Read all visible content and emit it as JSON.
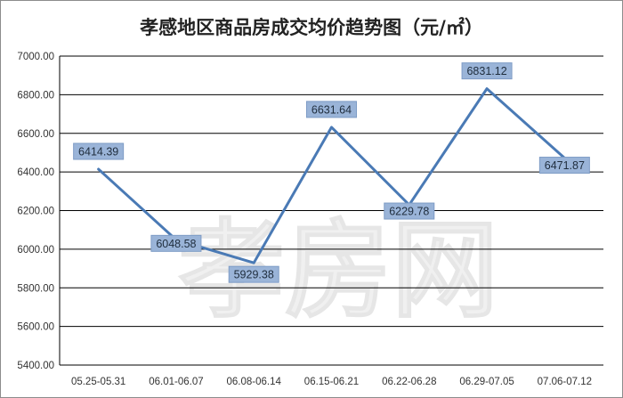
{
  "chart_data": {
    "type": "line",
    "title": "孝感地区商品房成交均价趋势图（元/㎡）",
    "categories": [
      "05.25-05.31",
      "06.01-06.07",
      "06.08-06.14",
      "06.15-06.21",
      "06.22-06.28",
      "06.29-07.05",
      "07.06-07.12"
    ],
    "series": [
      {
        "values": [
          6414.39,
          6048.58,
          5929.38,
          6631.64,
          6229.78,
          6831.12,
          6471.87
        ],
        "labels": [
          "6414.39",
          "6048.58",
          "5929.38",
          "6631.64",
          "6229.78",
          "6831.12",
          "6471.87"
        ]
      }
    ],
    "ylim": [
      5400,
      7000
    ],
    "yticks": [
      5400,
      5600,
      5800,
      6000,
      6200,
      6400,
      6600,
      6800,
      7000
    ],
    "ytick_labels": [
      "5400.00",
      "5600.00",
      "5800.00",
      "6000.00",
      "6200.00",
      "6400.00",
      "6600.00",
      "6800.00",
      "7000.00"
    ],
    "grid": true,
    "watermark": "孝房网",
    "colors": {
      "line": "#4a7ab5",
      "label_bg": "#9ab4d8",
      "label_border": "#7e9cc6",
      "grid": "#000000"
    }
  }
}
